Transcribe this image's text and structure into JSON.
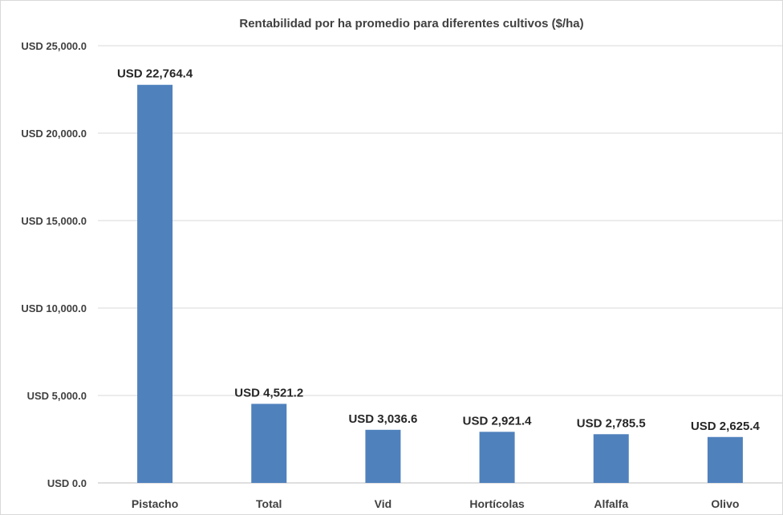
{
  "chart_data": {
    "type": "bar",
    "title": "Rentabilidad por ha promedio para diferentes cultivos ($/ha)",
    "xlabel": "",
    "ylabel": "",
    "categories": [
      "Pistacho",
      "Total",
      "Vid",
      "Hortícolas",
      "Alfalfa",
      "Olivo"
    ],
    "values": [
      22764.4,
      4521.2,
      3036.6,
      2921.4,
      2785.5,
      2625.4
    ],
    "data_labels": [
      "USD 22,764.4",
      "USD 4,521.2",
      "USD 3,036.6",
      "USD 2,921.4",
      "USD 2,785.5",
      "USD 2,625.4"
    ],
    "ylim": [
      0,
      25000
    ],
    "yticks": [
      0,
      5000,
      10000,
      15000,
      20000,
      25000
    ],
    "ytick_labels": [
      "USD 0.0",
      "USD 5,000.0",
      "USD 10,000.0",
      "USD 15,000.0",
      "USD 20,000.0",
      "USD 25,000.0"
    ],
    "bar_color": "#4f81bd",
    "grid": true,
    "legend": false
  }
}
